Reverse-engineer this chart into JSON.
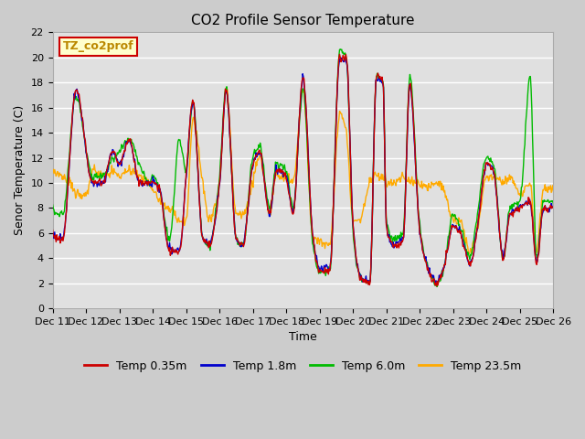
{
  "title": "CO2 Profile Sensor Temperature",
  "xlabel": "Time",
  "ylabel": "Senor Temperature (C)",
  "ylim": [
    0,
    22
  ],
  "yticks": [
    0,
    2,
    4,
    6,
    8,
    10,
    12,
    14,
    16,
    18,
    20,
    22
  ],
  "x_labels": [
    "Dec 11",
    "Dec 12",
    "Dec 13",
    "Dec 14",
    "Dec 15",
    "Dec 16",
    "Dec 17",
    "Dec 18",
    "Dec 19",
    "Dec 20",
    "Dec 21",
    "Dec 22",
    "Dec 23",
    "Dec 24",
    "Dec 25",
    "Dec 26"
  ],
  "label_box_text": "TZ_co2prof",
  "label_box_facecolor": "#ffffcc",
  "label_box_edgecolor": "#cc0000",
  "label_box_textcolor": "#bb8800",
  "legend_entries": [
    "Temp 0.35m",
    "Temp 1.8m",
    "Temp 6.0m",
    "Temp 23.5m"
  ],
  "line_colors": [
    "#cc0000",
    "#0000cc",
    "#00bb00",
    "#ffaa00"
  ],
  "fig_facecolor": "#cccccc",
  "ax_facecolor": "#e0e0e0",
  "grid_color": "#ffffff",
  "title_fontsize": 11,
  "axis_label_fontsize": 9,
  "tick_fontsize": 8
}
